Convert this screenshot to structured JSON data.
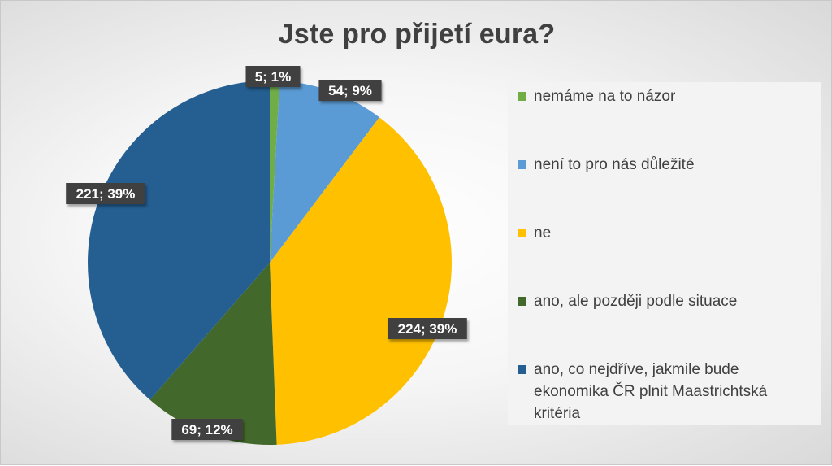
{
  "chart_data": {
    "type": "pie",
    "title": "Jste pro přijetí eura?",
    "slices": [
      {
        "label": "nemáme na to názor",
        "value": 5,
        "percent": "1%",
        "color": "#70ad47"
      },
      {
        "label": "není to pro nás důležité",
        "value": 54,
        "percent": "9%",
        "color": "#5b9bd5"
      },
      {
        "label": "ne",
        "value": 224,
        "percent": "39%",
        "color": "#ffc000"
      },
      {
        "label": "ano, ale později podle situace",
        "value": 69,
        "percent": "12%",
        "color": "#43682b"
      },
      {
        "label": "ano, co nejdříve, jakmile bude ekonomika ČR plnit Maastrichtská kritéria",
        "value": 221,
        "percent": "39%",
        "color": "#255e91"
      }
    ],
    "legend_position": "right",
    "data_labels": [
      "5; 1%",
      "54; 9%",
      "224; 39%",
      "69; 12%",
      "221; 39%"
    ]
  }
}
